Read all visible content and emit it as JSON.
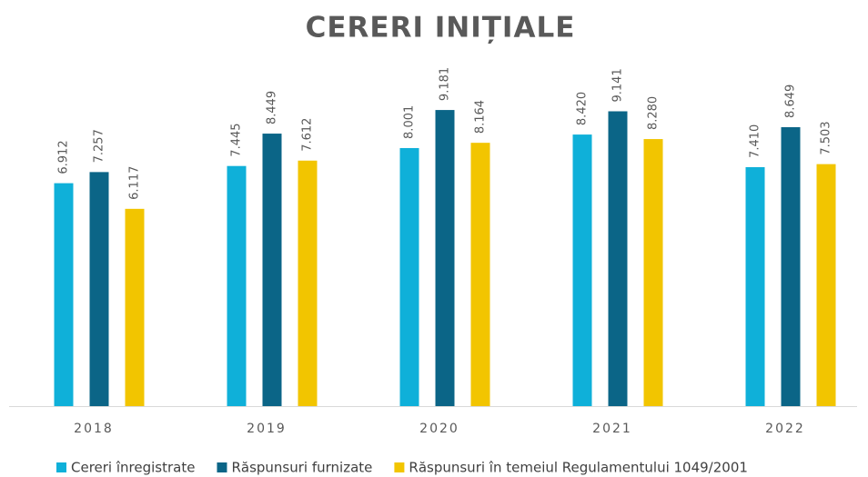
{
  "chart_data": {
    "type": "bar",
    "title": "CERERI INIȚIALE",
    "categories": [
      "2018",
      "2019",
      "2020",
      "2021",
      "2022"
    ],
    "series": [
      {
        "name": "Cereri înregistrate",
        "color": "#0fb0d9",
        "values": [
          6912,
          7445,
          8001,
          8420,
          7410
        ],
        "value_labels": [
          "6.912",
          "7.445",
          "8.001",
          "8.420",
          "7.410"
        ]
      },
      {
        "name": "Răspunsuri furnizate",
        "color": "#0b6587",
        "values": [
          7257,
          8449,
          9181,
          9141,
          8649
        ],
        "value_labels": [
          "7.257",
          "8.449",
          "9.181",
          "9.141",
          "8.649"
        ]
      },
      {
        "name": "Răspunsuri în temeiul Regulamentului 1049/2001",
        "color": "#f2c500",
        "values": [
          6117,
          7612,
          8164,
          8280,
          7503
        ],
        "value_labels": [
          "6.117",
          "7.612",
          "8.164",
          "8.280",
          "7.503"
        ]
      }
    ],
    "ylim": [
      0,
      10000
    ],
    "legend": "bottom"
  }
}
